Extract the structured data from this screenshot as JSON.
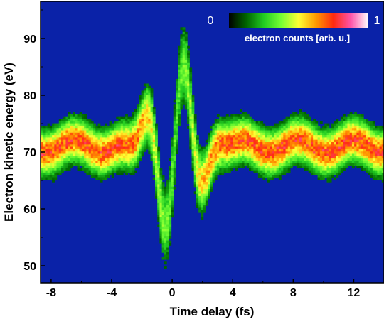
{
  "chart_data": {
    "type": "heatmap",
    "title": "",
    "xlabel": "Time delay (fs)",
    "ylabel": "Electron kinetic energy (eV)",
    "xlim": [
      -8.7,
      14.0
    ],
    "ylim": [
      47.0,
      96.5
    ],
    "xticks": [
      "-8",
      "-4",
      "0",
      "4",
      "8",
      "12"
    ],
    "xtick_values": [
      -8,
      -4,
      0,
      4,
      8,
      12
    ],
    "yticks": [
      "50",
      "60",
      "70",
      "80",
      "90"
    ],
    "ytick_values": [
      50,
      60,
      70,
      80,
      90
    ],
    "colorbar": {
      "label": "electron counts [arb. u.]",
      "min_label": "0",
      "max_label": "1",
      "colors": [
        "#000000",
        "#006400",
        "#22cc22",
        "#77ff33",
        "#ffff33",
        "#ff9900",
        "#ff2a10",
        "#ff55aa",
        "#ffffff"
      ]
    },
    "background_color": "#0a22a8",
    "baseline_band": {
      "center_ev": 71.0,
      "width_ev": 3.6,
      "peak_intensity": 0.72
    },
    "streaking": {
      "description_free_params": true,
      "period_fs": 2.6,
      "max_shift_ev": 15.5,
      "envelope_center_fs": 0.2,
      "envelope_width_fs": 1.9
    },
    "grid": false,
    "legend": "colorbar top-right"
  }
}
